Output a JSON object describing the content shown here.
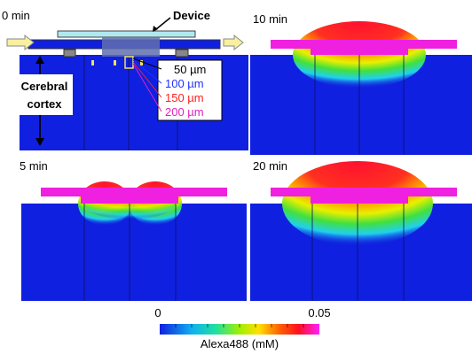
{
  "panels": [
    {
      "time": "0 min"
    },
    {
      "time": "10 min"
    },
    {
      "time": "5 min"
    },
    {
      "time": "20 min"
    }
  ],
  "annotations": {
    "device": "Device",
    "cortex": [
      "Cerebral",
      "cortex"
    ],
    "depths": [
      "50 µm",
      "100 µm",
      "150 µm",
      "200 µm"
    ]
  },
  "colorbar": {
    "min": "0",
    "max": "0.05",
    "label": "Alexa488 (mM)"
  }
}
